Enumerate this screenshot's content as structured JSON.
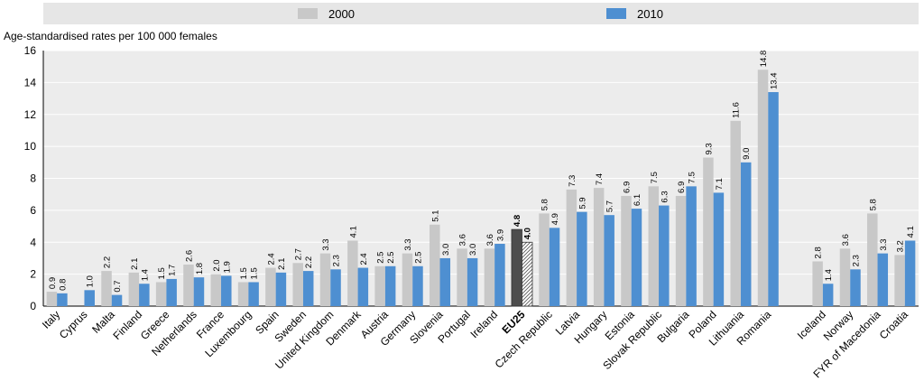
{
  "chart_data": {
    "type": "bar",
    "ylabel": "Age-standardised rates per 100 000 females",
    "ylim": [
      0,
      16
    ],
    "yticks": [
      0,
      2,
      4,
      6,
      8,
      10,
      12,
      14,
      16
    ],
    "grid": true,
    "legend_position": "top",
    "colors": {
      "2000": "#c8c8c8",
      "2010": "#4e8fd1",
      "eu_2000": "#4d4d4d",
      "legend_bg": "#e6e6e6"
    },
    "highlight_category": "EU25",
    "categories": [
      "Italy",
      "Cyprus",
      "Malta",
      "Finland",
      "Greece",
      "Netherlands",
      "France",
      "Luxembourg",
      "Spain",
      "Sweden",
      "United Kingdom",
      "Denmark",
      "Austria",
      "Germany",
      "Slovenia",
      "Portugal",
      "Ireland",
      "EU25",
      "Czech Republic",
      "Latvia",
      "Hungary",
      "Estonia",
      "Slovak Republic",
      "Bulgaria",
      "Poland",
      "Lithuania",
      "Romania",
      "",
      "Iceland",
      "Norway",
      "FYR of Macedonia",
      "Croatia"
    ],
    "series": [
      {
        "name": "2000",
        "values": [
          0.9,
          null,
          2.2,
          2.1,
          1.5,
          2.6,
          2.0,
          1.5,
          2.4,
          2.7,
          3.3,
          4.1,
          2.5,
          3.3,
          5.1,
          3.6,
          3.6,
          4.8,
          5.8,
          7.3,
          7.4,
          6.9,
          7.5,
          6.9,
          9.3,
          11.6,
          14.8,
          null,
          2.8,
          3.6,
          5.8,
          3.2
        ]
      },
      {
        "name": "2010",
        "values": [
          0.8,
          1.0,
          0.7,
          1.4,
          1.7,
          1.8,
          1.9,
          1.5,
          2.1,
          2.2,
          2.3,
          2.4,
          2.5,
          2.5,
          3.0,
          3.0,
          3.9,
          4.0,
          4.9,
          5.9,
          5.7,
          6.1,
          6.3,
          7.5,
          7.1,
          9.0,
          13.4,
          null,
          1.4,
          2.3,
          3.3,
          4.1
        ]
      }
    ]
  }
}
